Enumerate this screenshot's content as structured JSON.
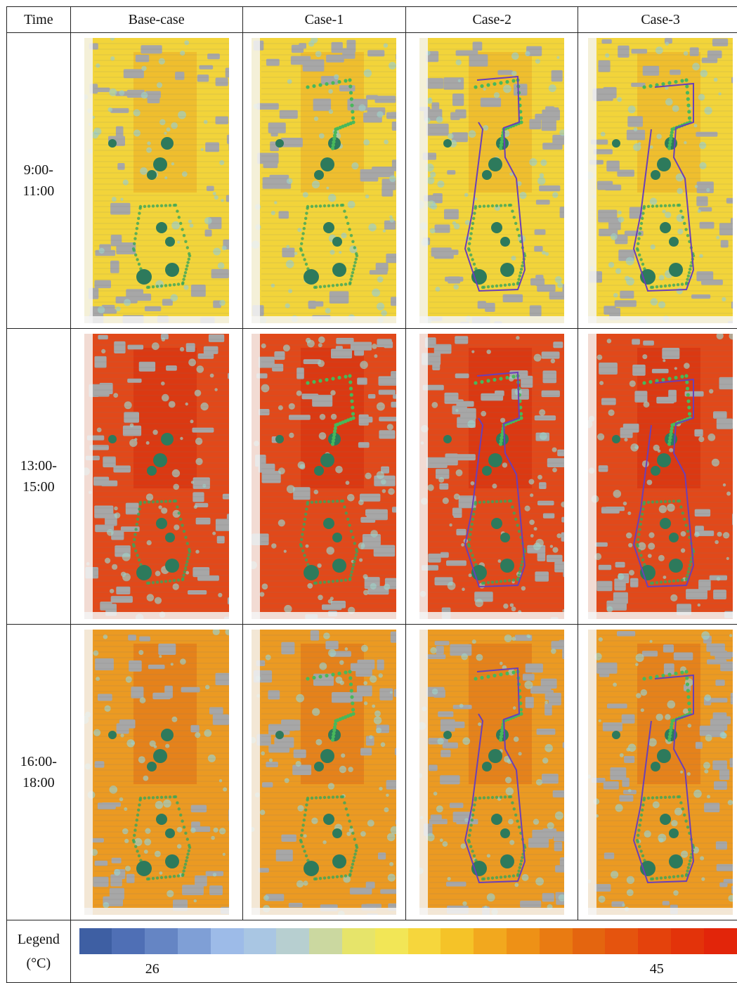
{
  "header": {
    "time": "Time",
    "cases": [
      "Base-case",
      "Case-1",
      "Case-2",
      "Case-3"
    ]
  },
  "rows": [
    {
      "line1": "9:00-",
      "line2": "11:00",
      "palette": "yellow"
    },
    {
      "line1": "13:00-",
      "line2": "15:00",
      "palette": "red"
    },
    {
      "line1": "16:00-",
      "line2": "18:00",
      "palette": "orange"
    }
  ],
  "legend": {
    "label": "Legend",
    "unit": "(°C)",
    "min": "26",
    "max": "45",
    "colors": [
      "#3e5fa3",
      "#4f6fb5",
      "#6585c4",
      "#7f9fd6",
      "#9dbbe8",
      "#a9c6e3",
      "#b7cfd0",
      "#cbd8a0",
      "#e6e46a",
      "#f2e656",
      "#f6d63c",
      "#f5c328",
      "#f2a81e",
      "#ee9116",
      "#e97b12",
      "#e4650f",
      "#e5540e",
      "#e4420c",
      "#e3330a",
      "#e2250a"
    ]
  }
}
